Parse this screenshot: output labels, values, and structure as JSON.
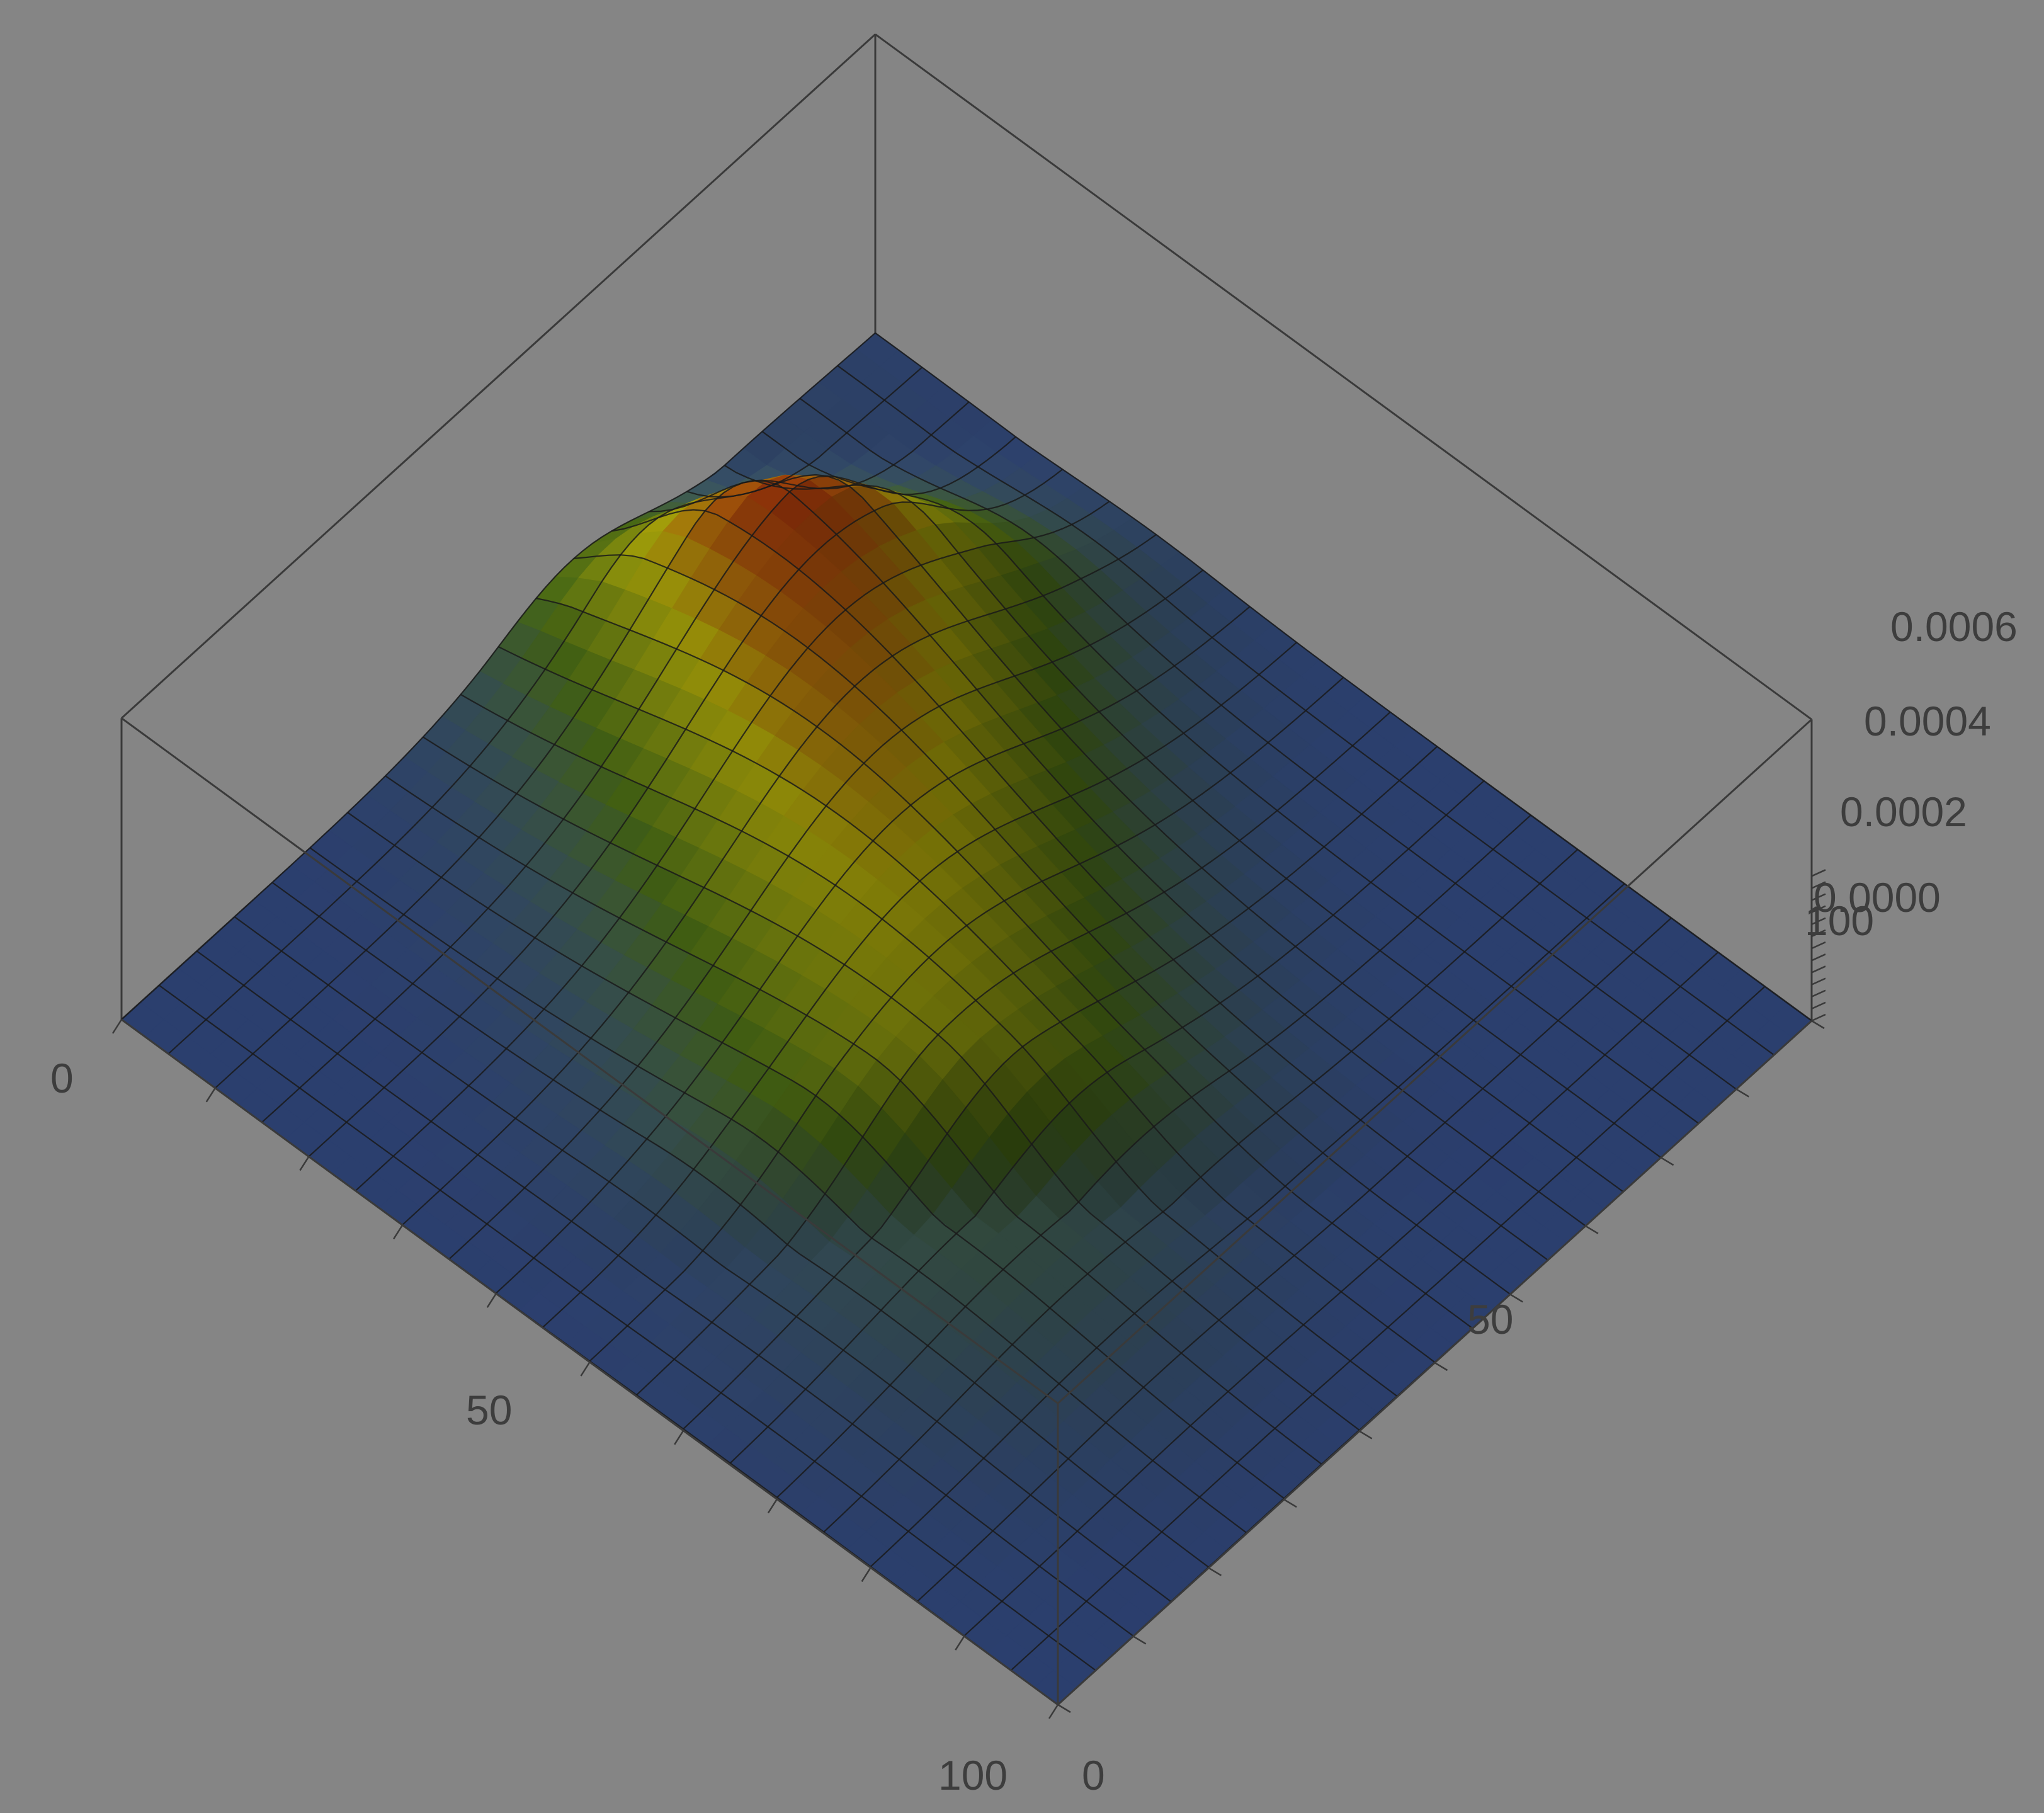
{
  "chart_data": {
    "type": "surface3d",
    "title": "",
    "xlabel": "",
    "ylabel": "",
    "zlabel": "",
    "xlim": [
      0,
      100
    ],
    "ylim": [
      0,
      100
    ],
    "zlim": [
      0,
      0.0007
    ],
    "x_ticks": [
      "0",
      "50",
      "100"
    ],
    "y_ticks": [
      "0",
      "50",
      "100"
    ],
    "z_ticks": [
      "0.0000",
      "0.0002",
      "0.0004",
      "0.0006"
    ],
    "peak": {
      "x": 15,
      "y": 70,
      "z": 0.00063
    },
    "ridge": {
      "start": [
        15,
        70
      ],
      "end": [
        55,
        40
      ]
    },
    "mesh_lines": 20,
    "colors": {
      "background": "#858585",
      "low": "#2f4478",
      "mid_low": "#3d5a12",
      "mid": "#8f8a08",
      "high": "#8b0a0a",
      "mesh": "#1a1a1a",
      "box": "#3a3a3a"
    }
  }
}
